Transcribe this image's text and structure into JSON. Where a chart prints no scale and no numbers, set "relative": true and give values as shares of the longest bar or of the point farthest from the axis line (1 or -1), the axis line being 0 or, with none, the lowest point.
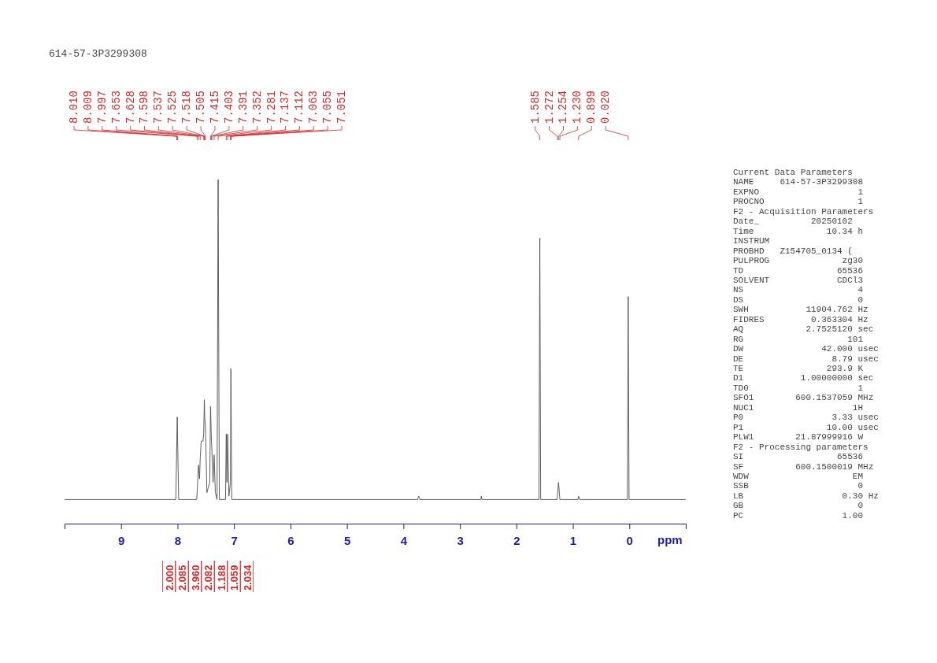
{
  "chart_data": {
    "type": "line",
    "title": "614-57-3P3299308",
    "xlabel": "ppm",
    "relative": true,
    "xlim": [
      10,
      -1
    ],
    "xticks": [
      9,
      8,
      7,
      6,
      5,
      4,
      3,
      2,
      1,
      0
    ],
    "grid": false,
    "marker": "none",
    "line_style": "solid",
    "series": [
      {
        "color": "#4d4d4d",
        "x": [
          10,
          8.03,
          8.005,
          7.98,
          7.66,
          7.653,
          7.628,
          7.61,
          7.598,
          7.58,
          7.55,
          7.537,
          7.525,
          7.518,
          7.505,
          7.48,
          7.43,
          7.415,
          7.403,
          7.391,
          7.37,
          7.352,
          7.33,
          7.3,
          7.281,
          7.26,
          7.15,
          7.137,
          7.125,
          7.112,
          7.09,
          7.063,
          7.055,
          7.051,
          7.04,
          3.75,
          3.73,
          3.71,
          2.63,
          2.62,
          2.61,
          1.6,
          1.585,
          1.57,
          1.28,
          1.254,
          1.23,
          0.91,
          0.899,
          0.88,
          0.035,
          0.02,
          0.005,
          -1
        ],
        "values": [
          0.07,
          0.07,
          0.31,
          0.07,
          0.07,
          0.09,
          0.17,
          0.13,
          0.19,
          0.24,
          0.24,
          0.26,
          0.36,
          0.31,
          0.28,
          0.09,
          0.12,
          0.34,
          0.26,
          0.21,
          0.12,
          0.2,
          0.09,
          0.07,
          1,
          0.07,
          0.07,
          0.26,
          0.12,
          0.26,
          0.08,
          0.12,
          0.45,
          0.35,
          0.07,
          0.07,
          0.08,
          0.07,
          0.07,
          0.08,
          0.07,
          0.07,
          0.83,
          0.07,
          0.07,
          0.12,
          0.07,
          0.07,
          0.08,
          0.07,
          0.07,
          0.66,
          0.07,
          0.07
        ]
      }
    ],
    "annotations": [
      "8.010",
      "8.009",
      "7.997",
      "7.653",
      "7.628",
      "7.598",
      "7.537",
      "7.525",
      "7.518",
      "7.505",
      "7.415",
      "7.403",
      "7.391",
      "7.352",
      "7.281",
      "7.137",
      "7.112",
      "7.063",
      "7.055",
      "7.051",
      "1.585",
      "1.272",
      "1.254",
      "1.230",
      "0.899",
      "0.020",
      "2.000",
      "2.085",
      "3.960",
      "2.082",
      "1.188",
      "1.059",
      "2.034",
      "Current Data Parameters",
      "NAME     614-57-3P3299308",
      "EXPNO                   1",
      "PROCNO                  1",
      "F2 - Acquisition Parameters",
      "Date_          20250102",
      "Time              10.34 h",
      "INSTRUM",
      "PROBHD   Z154705_0134 (",
      "PULPROG              zg30",
      "TD                  65536",
      "SOLVENT             CDCl3",
      "NS                      4",
      "DS                      0",
      "SWH           11904.762 Hz",
      "FIDRES         0.363304 Hz",
      "AQ            2.7525120 sec",
      "RG                    101",
      "DW               42.000 usec",
      "DE                 8.79 usec",
      "TE                293.9 K",
      "D1           1.00000000 sec",
      "TD0                     1",
      "SFO1        600.1537059 MHz",
      "NUC1                   1H",
      "P0                 3.33 usec",
      "P1                10.00 usec",
      "PLW1        21.87999916 W",
      "F2 - Processing parameters",
      "SI                  65536",
      "SF          600.1500019 MHz",
      "WDW                    EM",
      "SSB                     0",
      "LB                   0.30 Hz",
      "GB                      0",
      "PC                   1.00"
    ]
  }
}
